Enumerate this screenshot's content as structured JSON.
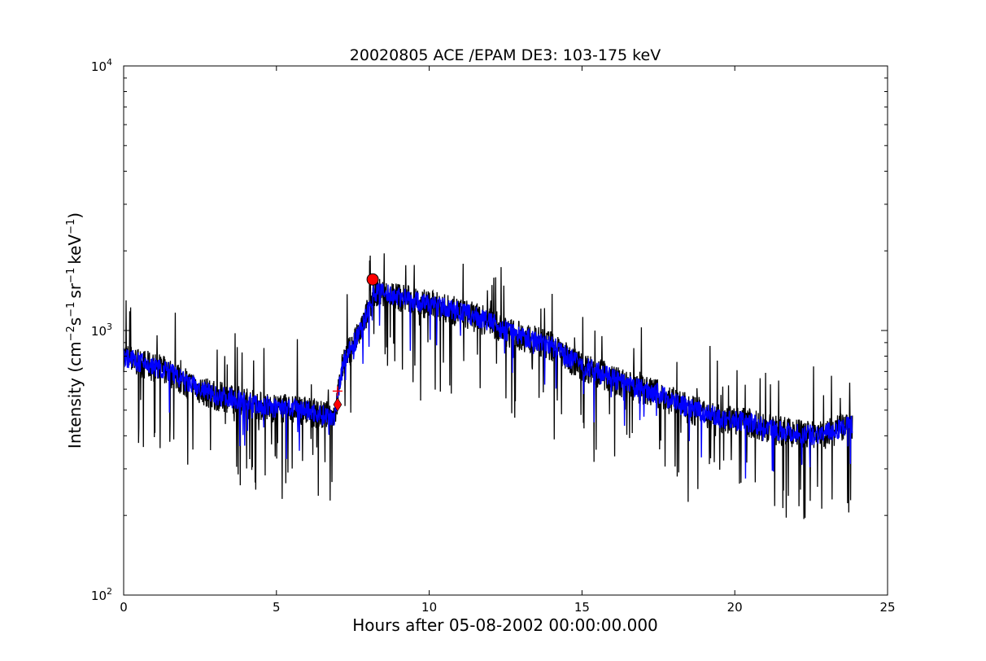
{
  "chart_data": {
    "type": "line",
    "title": "20020805 ACE /EPAM DE3: 103-175 keV",
    "xlabel": "Hours after 05-08-2002 00:00:00.000",
    "ylabel": "Intensity (cm$^{-2}$s$^{-1}$sr$^{-1}$keV$^{-1}$)",
    "ylabel_parts": {
      "prefix": "Intensity (cm",
      "exp_cm": "−2",
      "s": "s",
      "exp_s": "−1",
      "sr": "sr",
      "exp_sr": "−1",
      "kev": "keV",
      "exp_kev": "−1",
      "suffix": ")"
    },
    "xlim": [
      0,
      25
    ],
    "ylim": [
      100,
      10000
    ],
    "yscale": "log",
    "grid": false,
    "x_ticks": [
      0,
      5,
      10,
      15,
      20,
      25
    ],
    "x_tick_labels": [
      "0",
      "5",
      "10",
      "15",
      "20",
      "25"
    ],
    "y_ticks": [
      100,
      1000,
      10000
    ],
    "y_tick_labels": [
      {
        "base": "10",
        "exp": "2"
      },
      {
        "base": "10",
        "exp": "3"
      },
      {
        "base": "10",
        "exp": "4"
      }
    ],
    "series": [
      {
        "color": "#000000",
        "noise": "high",
        "profile": [
          [
            0.0,
            800
          ],
          [
            0.5,
            760
          ],
          [
            1.0,
            730
          ],
          [
            1.5,
            700
          ],
          [
            2.0,
            640
          ],
          [
            2.5,
            600
          ],
          [
            3.0,
            570
          ],
          [
            3.5,
            560
          ],
          [
            4.0,
            540
          ],
          [
            4.5,
            520
          ],
          [
            5.0,
            510
          ],
          [
            5.5,
            510
          ],
          [
            6.0,
            500
          ],
          [
            6.5,
            480
          ],
          [
            6.9,
            480
          ],
          [
            7.0,
            560
          ],
          [
            7.2,
            780
          ],
          [
            7.5,
            880
          ],
          [
            7.8,
            1020
          ],
          [
            8.2,
            1420
          ],
          [
            8.5,
            1380
          ],
          [
            9.0,
            1350
          ],
          [
            9.5,
            1300
          ],
          [
            10.0,
            1260
          ],
          [
            10.5,
            1220
          ],
          [
            11.0,
            1180
          ],
          [
            11.5,
            1130
          ],
          [
            12.0,
            1080
          ],
          [
            12.5,
            1000
          ],
          [
            13.0,
            960
          ],
          [
            13.5,
            920
          ],
          [
            14.0,
            880
          ],
          [
            14.5,
            800
          ],
          [
            15.0,
            740
          ],
          [
            15.5,
            700
          ],
          [
            16.0,
            660
          ],
          [
            16.5,
            620
          ],
          [
            17.0,
            600
          ],
          [
            17.5,
            580
          ],
          [
            18.0,
            540
          ],
          [
            18.5,
            510
          ],
          [
            19.0,
            490
          ],
          [
            19.5,
            470
          ],
          [
            20.0,
            460
          ],
          [
            20.5,
            450
          ],
          [
            21.0,
            430
          ],
          [
            21.5,
            420
          ],
          [
            22.0,
            410
          ],
          [
            22.5,
            405
          ],
          [
            23.0,
            410
          ],
          [
            23.5,
            430
          ],
          [
            23.85,
            440
          ]
        ]
      },
      {
        "color": "#0000ff",
        "noise": "low",
        "profile": [
          [
            0.0,
            800
          ],
          [
            0.5,
            760
          ],
          [
            1.0,
            730
          ],
          [
            1.5,
            700
          ],
          [
            2.0,
            640
          ],
          [
            2.5,
            600
          ],
          [
            3.0,
            570
          ],
          [
            3.5,
            560
          ],
          [
            4.0,
            540
          ],
          [
            4.5,
            520
          ],
          [
            5.0,
            510
          ],
          [
            5.5,
            510
          ],
          [
            6.0,
            500
          ],
          [
            6.5,
            480
          ],
          [
            6.9,
            480
          ],
          [
            7.0,
            560
          ],
          [
            7.2,
            780
          ],
          [
            7.5,
            880
          ],
          [
            7.8,
            1020
          ],
          [
            8.2,
            1420
          ],
          [
            8.5,
            1380
          ],
          [
            9.0,
            1350
          ],
          [
            9.5,
            1300
          ],
          [
            10.0,
            1260
          ],
          [
            10.5,
            1220
          ],
          [
            11.0,
            1180
          ],
          [
            11.5,
            1130
          ],
          [
            12.0,
            1080
          ],
          [
            12.5,
            1000
          ],
          [
            13.0,
            960
          ],
          [
            13.5,
            920
          ],
          [
            14.0,
            880
          ],
          [
            14.5,
            800
          ],
          [
            15.0,
            740
          ],
          [
            15.5,
            700
          ],
          [
            16.0,
            660
          ],
          [
            16.5,
            620
          ],
          [
            17.0,
            600
          ],
          [
            17.5,
            580
          ],
          [
            18.0,
            540
          ],
          [
            18.5,
            510
          ],
          [
            19.0,
            490
          ],
          [
            19.5,
            470
          ],
          [
            20.0,
            460
          ],
          [
            20.5,
            450
          ],
          [
            21.0,
            430
          ],
          [
            21.5,
            420
          ],
          [
            22.0,
            410
          ],
          [
            22.5,
            405
          ],
          [
            23.0,
            410
          ],
          [
            23.5,
            430
          ],
          [
            23.85,
            440
          ]
        ]
      }
    ],
    "markers": [
      {
        "shape": "circle",
        "x": 8.15,
        "y": 1560,
        "color": "#ff0000"
      },
      {
        "shape": "diamond",
        "x": 7.0,
        "y": 525,
        "color": "#ff0000"
      },
      {
        "shape": "plus",
        "x": 7.0,
        "y": 590,
        "color": "#ff0000"
      }
    ]
  }
}
